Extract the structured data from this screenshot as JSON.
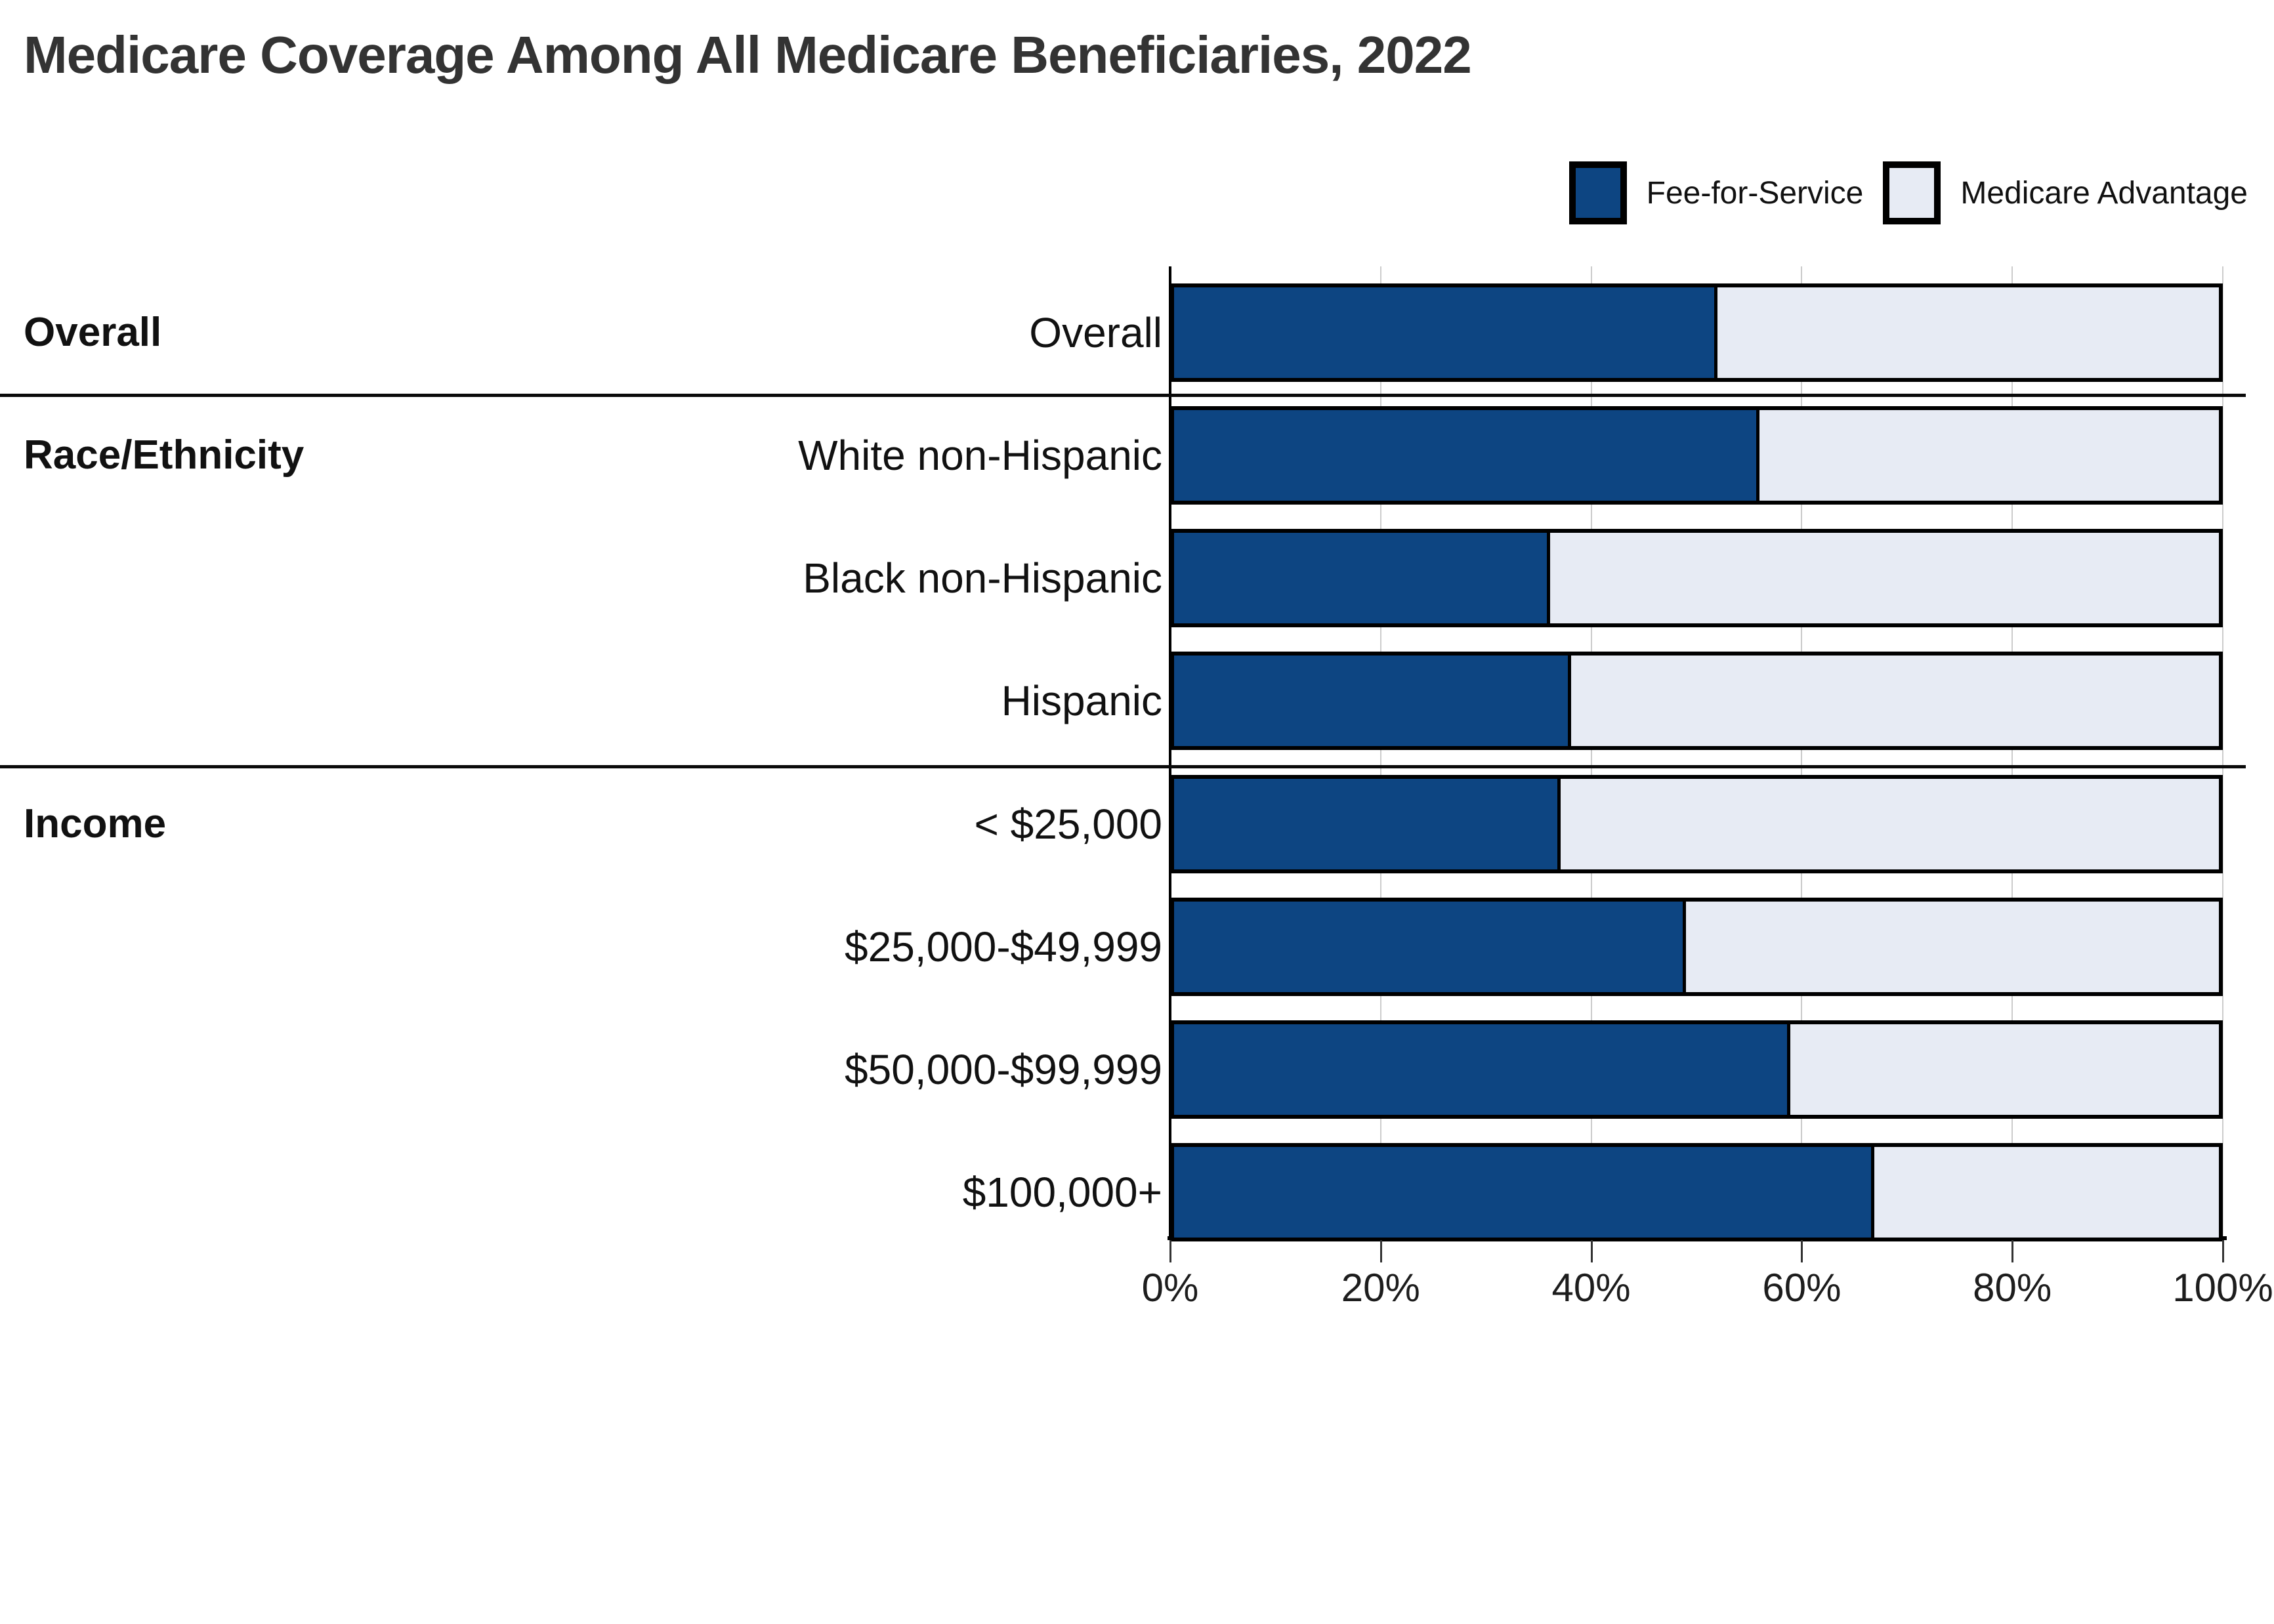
{
  "title": "Medicare Coverage Among All Medicare Beneficiaries, 2022",
  "legend": {
    "items": [
      {
        "label": "Fee-for-Service",
        "color": "#0d4582"
      },
      {
        "label": "Medicare Advantage",
        "color": "#e7ebf4"
      }
    ]
  },
  "x_axis": {
    "min": 0,
    "max": 100,
    "tick_labels": [
      "0%",
      "20%",
      "40%",
      "60%",
      "80%",
      "100%"
    ]
  },
  "groups": [
    {
      "label": "Overall",
      "rows": [
        {
          "label": "Overall",
          "fee_for_service_pct": 52,
          "medicare_advantage_pct": 48
        }
      ]
    },
    {
      "label": "Race/Ethnicity",
      "rows": [
        {
          "label": "White non-Hispanic",
          "fee_for_service_pct": 56,
          "medicare_advantage_pct": 44
        },
        {
          "label": "Black non-Hispanic",
          "fee_for_service_pct": 36,
          "medicare_advantage_pct": 64
        },
        {
          "label": "Hispanic",
          "fee_for_service_pct": 38,
          "medicare_advantage_pct": 62
        }
      ]
    },
    {
      "label": "Income",
      "rows": [
        {
          "label": "< $25,000",
          "fee_for_service_pct": 37,
          "medicare_advantage_pct": 63
        },
        {
          "label": "$25,000-$49,999",
          "fee_for_service_pct": 49,
          "medicare_advantage_pct": 51
        },
        {
          "label": "$50,000-$99,999",
          "fee_for_service_pct": 59,
          "medicare_advantage_pct": 41
        },
        {
          "label": "$100,000+",
          "fee_for_service_pct": 67,
          "medicare_advantage_pct": 33
        }
      ]
    }
  ],
  "chart_data": {
    "type": "bar",
    "subtype": "horizontal-stacked-100pct",
    "title": "Medicare Coverage Among All Medicare Beneficiaries, 2022",
    "categories": [
      "Overall",
      "White non-Hispanic",
      "Black non-Hispanic",
      "Hispanic",
      "< $25,000",
      "$25,000-$49,999",
      "$50,000-$99,999",
      "$100,000+"
    ],
    "category_groups": [
      {
        "group": "Overall",
        "categories": [
          "Overall"
        ]
      },
      {
        "group": "Race/Ethnicity",
        "categories": [
          "White non-Hispanic",
          "Black non-Hispanic",
          "Hispanic"
        ]
      },
      {
        "group": "Income",
        "categories": [
          "< $25,000",
          "$25,000-$49,999",
          "$50,000-$99,999",
          "$100,000+"
        ]
      }
    ],
    "series": [
      {
        "name": "Fee-for-Service",
        "color": "#0d4582",
        "values": [
          52,
          56,
          36,
          38,
          37,
          49,
          59,
          67
        ]
      },
      {
        "name": "Medicare Advantage",
        "color": "#e7ebf4",
        "values": [
          48,
          44,
          64,
          62,
          63,
          51,
          41,
          33
        ]
      }
    ],
    "xlabel": "",
    "ylabel": "",
    "xlim": [
      0,
      100
    ],
    "x_ticks": [
      "0%",
      "20%",
      "40%",
      "60%",
      "80%",
      "100%"
    ],
    "grid": "vertical",
    "bar_border_color": "#000000",
    "legend_position": "top-right"
  }
}
